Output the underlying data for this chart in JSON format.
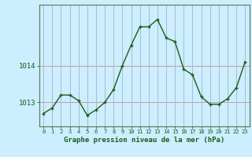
{
  "x": [
    0,
    1,
    2,
    3,
    4,
    5,
    6,
    7,
    8,
    9,
    10,
    11,
    12,
    13,
    14,
    15,
    16,
    17,
    18,
    19,
    20,
    21,
    22,
    23
  ],
  "y": [
    1012.7,
    1012.85,
    1013.2,
    1013.2,
    1013.05,
    1012.65,
    1012.8,
    1013.0,
    1013.35,
    1014.0,
    1014.55,
    1015.05,
    1015.05,
    1015.25,
    1014.75,
    1014.65,
    1013.9,
    1013.75,
    1013.15,
    1012.95,
    1012.95,
    1013.1,
    1013.4,
    1014.1
  ],
  "line_color": "#1a5c1a",
  "marker_color": "#1a5c1a",
  "bg_color": "#cceeff",
  "plot_bg_color": "#cceeff",
  "grid_h_color": "#cc9999",
  "grid_v_color": "#aabbcc",
  "axis_label_color": "#1a5c1a",
  "tick_label_color": "#1a5c1a",
  "border_color": "#557755",
  "yticks": [
    1013,
    1014
  ],
  "ylim": [
    1012.35,
    1015.65
  ],
  "xlabel": "Graphe pression niveau de la mer (hPa)",
  "figsize": [
    3.2,
    2.0
  ],
  "dpi": 100
}
